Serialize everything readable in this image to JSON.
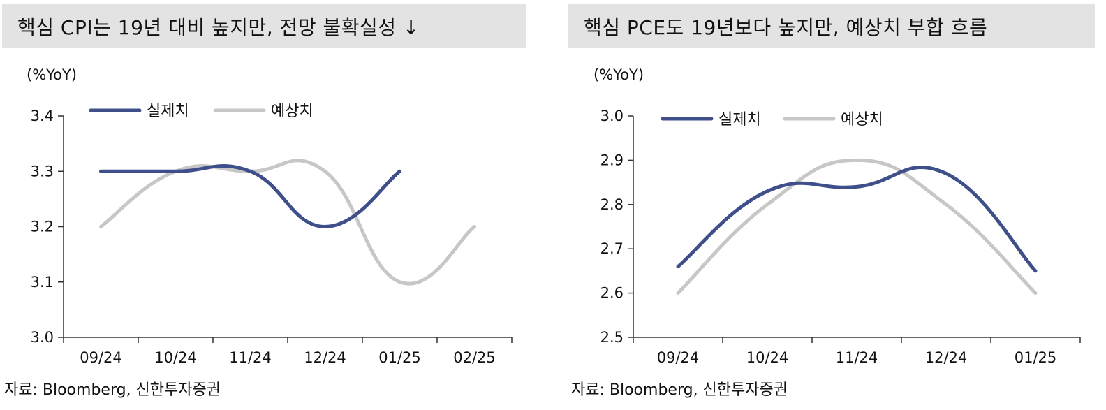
{
  "colors": {
    "actual": "#3e4f8a",
    "forecast": "#c7c7c7",
    "title_bg": "#e3e3e3"
  },
  "left": {
    "title": "핵심 CPI는 19년 대비 높지만, 전망 불확실성 ↓",
    "unit": "(%YoY)",
    "source": "자료: Bloomberg, 신한투자증권"
  },
  "right": {
    "title": "핵심 PCE도 19년보다 높지만, 예상치 부합 흐름",
    "unit": "(%YoY)",
    "source": "자료: Bloomberg, 신한투자증권"
  },
  "chart_data": [
    {
      "type": "line",
      "title": "핵심 CPI는 19년 대비 높지만, 전망 불확실성 ↓",
      "ylabel": "(%YoY)",
      "categories": [
        "09/24",
        "10/24",
        "11/24",
        "12/24",
        "01/25",
        "02/25"
      ],
      "yticks": [
        "3.0",
        "3.1",
        "3.2",
        "3.3",
        "3.4"
      ],
      "ylim": [
        3.0,
        3.4
      ],
      "legend": "top-left",
      "series": [
        {
          "name": "실제치",
          "color_key": "actual",
          "values": [
            3.3,
            3.3,
            3.3,
            3.2,
            3.3,
            null
          ]
        },
        {
          "name": "예상치",
          "color_key": "forecast",
          "values": [
            3.2,
            3.3,
            3.3,
            3.3,
            3.1,
            3.2
          ]
        }
      ]
    },
    {
      "type": "line",
      "title": "핵심 PCE도 19년보다 높지만, 예상치 부합 흐름",
      "ylabel": "(%YoY)",
      "categories": [
        "09/24",
        "10/24",
        "11/24",
        "12/24",
        "01/25"
      ],
      "yticks": [
        "2.5",
        "2.6",
        "2.7",
        "2.8",
        "2.9",
        "3.0"
      ],
      "ylim": [
        2.5,
        3.0
      ],
      "legend": "top-left",
      "series": [
        {
          "name": "실제치",
          "color_key": "actual",
          "values": [
            2.66,
            2.83,
            2.84,
            2.87,
            2.65
          ]
        },
        {
          "name": "예상치",
          "color_key": "forecast",
          "values": [
            2.6,
            2.8,
            2.9,
            2.8,
            2.6
          ]
        }
      ]
    }
  ]
}
